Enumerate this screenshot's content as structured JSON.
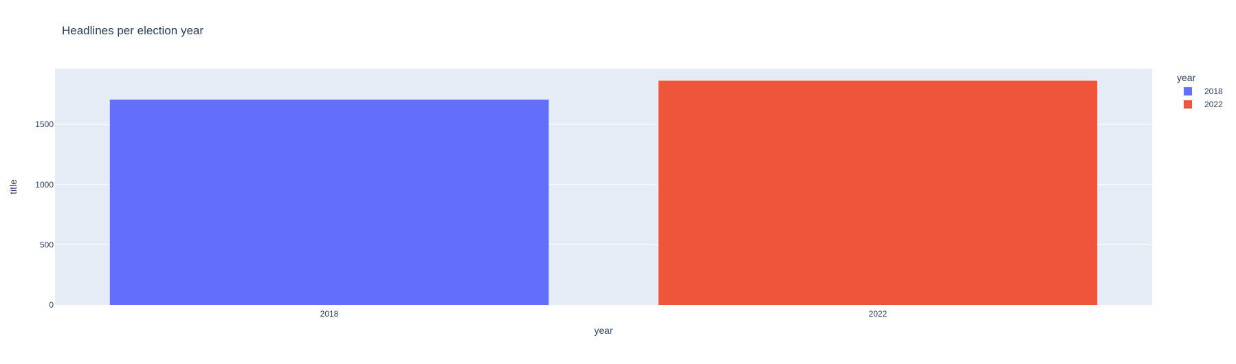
{
  "chart_data": {
    "type": "bar",
    "title": "Headlines per election year",
    "xlabel": "year",
    "ylabel": "title",
    "categories": [
      "2018",
      "2022"
    ],
    "series": [
      {
        "name": "2018",
        "category": "2018",
        "value": 1706,
        "color": "#636efa"
      },
      {
        "name": "2022",
        "category": "2022",
        "value": 1863,
        "color": "#ef553b"
      }
    ],
    "ylim": [
      0,
      1963
    ],
    "yticks": [
      0,
      500,
      1000,
      1500
    ],
    "ytick_labels": [
      "0",
      "500",
      "1000",
      "1500"
    ],
    "grid": true,
    "legend": {
      "title": "year",
      "placement": "top-right"
    },
    "colors": {
      "plot_background": "#e5ecf6",
      "gridline": "#ffffff",
      "text": "#2a3f5f"
    }
  }
}
